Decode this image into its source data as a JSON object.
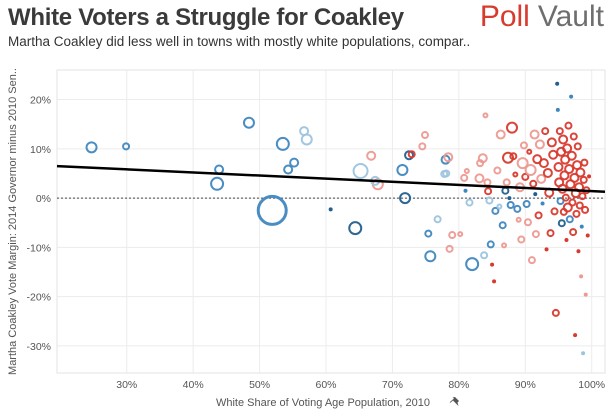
{
  "header": {
    "title": "White Voters a Struggle for Coakley",
    "subtitle": "Martha Coakley did less well in towns with mostly white populations, compar..",
    "logo_poll": "Poll",
    "logo_vault": "Vault"
  },
  "colors": {
    "red": "#d83a2e",
    "light_red": "#ec9a92",
    "blue": "#3f87bf",
    "dark_blue": "#235f8e",
    "light_blue": "#9dc4de",
    "trend": "#000000",
    "brand_red": "#d83a2e"
  },
  "icons": {
    "pin": "pin-icon"
  },
  "chart_data": {
    "type": "scatter",
    "title": "White Voters a Struggle for Coakley",
    "subtitle": "Martha Coakley did less well in towns with mostly white populations, compar..",
    "xlabel": "White Share of Voting Age Population, 2010",
    "ylabel": "Martha Coakley Vote Margin: 2014 Governor minus 2010 Sen..",
    "xlim": [
      19.5,
      102
    ],
    "ylim": [
      -35.5,
      26
    ],
    "xticks": [
      30,
      40,
      50,
      60,
      70,
      80,
      90,
      100
    ],
    "yticks": [
      20,
      10,
      0,
      -10,
      -20,
      -30
    ],
    "xtick_labels": [
      "30%",
      "40%",
      "50%",
      "60%",
      "70%",
      "80%",
      "90%",
      "100%"
    ],
    "ytick_labels": [
      "20%",
      "10%",
      "0%",
      "-10%",
      "-20%",
      "-30%"
    ],
    "zero_reference_line": true,
    "grid": true,
    "trend_line": {
      "x": [
        19.5,
        102
      ],
      "y": [
        6.5,
        1.3
      ]
    },
    "points": [
      {
        "x": 24.7,
        "y": 10.3,
        "size": 5,
        "color": "blue",
        "filled": false
      },
      {
        "x": 29.9,
        "y": 10.5,
        "size": 3,
        "color": "blue",
        "filled": false
      },
      {
        "x": 43.6,
        "y": 2.9,
        "size": 6,
        "color": "blue",
        "filled": false
      },
      {
        "x": 43.9,
        "y": 5.8,
        "size": 4,
        "color": "blue",
        "filled": false
      },
      {
        "x": 48.4,
        "y": 15.3,
        "size": 5,
        "color": "blue",
        "filled": false
      },
      {
        "x": 53.5,
        "y": 11.0,
        "size": 6,
        "color": "blue",
        "filled": false
      },
      {
        "x": 54.3,
        "y": 5.8,
        "size": 4,
        "color": "blue",
        "filled": false
      },
      {
        "x": 55.2,
        "y": 7.2,
        "size": 4,
        "color": "blue",
        "filled": false
      },
      {
        "x": 56.7,
        "y": 13.6,
        "size": 4,
        "color": "light_blue",
        "filled": false
      },
      {
        "x": 57.1,
        "y": 11.9,
        "size": 5,
        "color": "light_blue",
        "filled": false
      },
      {
        "x": 51.9,
        "y": -2.5,
        "size": 14,
        "color": "blue",
        "filled": false
      },
      {
        "x": 60.7,
        "y": -2.3,
        "size": 2,
        "color": "dark_blue",
        "filled": true
      },
      {
        "x": 64.4,
        "y": -6.1,
        "size": 6,
        "color": "dark_blue",
        "filled": false
      },
      {
        "x": 65.2,
        "y": 5.5,
        "size": 7,
        "color": "light_blue",
        "filled": false
      },
      {
        "x": 66.8,
        "y": 8.6,
        "size": 4,
        "color": "light_red",
        "filled": false
      },
      {
        "x": 67.8,
        "y": 2.8,
        "size": 5,
        "color": "light_red",
        "filled": false
      },
      {
        "x": 67.4,
        "y": 3.5,
        "size": 4,
        "color": "light_blue",
        "filled": false
      },
      {
        "x": 71.5,
        "y": 5.7,
        "size": 5,
        "color": "blue",
        "filled": false
      },
      {
        "x": 71.9,
        "y": 0.0,
        "size": 5,
        "color": "dark_blue",
        "filled": false
      },
      {
        "x": 72.5,
        "y": 8.7,
        "size": 4,
        "color": "dark_blue",
        "filled": false
      },
      {
        "x": 72.9,
        "y": 8.9,
        "size": 3,
        "color": "red",
        "filled": false
      },
      {
        "x": 74.5,
        "y": 10.5,
        "size": 3,
        "color": "light_red",
        "filled": false
      },
      {
        "x": 74.9,
        "y": 12.8,
        "size": 3,
        "color": "light_red",
        "filled": false
      },
      {
        "x": 75.4,
        "y": -7.2,
        "size": 3,
        "color": "blue",
        "filled": false
      },
      {
        "x": 75.7,
        "y": -11.8,
        "size": 5,
        "color": "blue",
        "filled": false
      },
      {
        "x": 76.8,
        "y": -4.3,
        "size": 3,
        "color": "light_blue",
        "filled": false
      },
      {
        "x": 77.8,
        "y": 4.9,
        "size": 3,
        "color": "light_blue",
        "filled": false
      },
      {
        "x": 78.0,
        "y": 7.8,
        "size": 4,
        "color": "blue",
        "filled": false
      },
      {
        "x": 78.1,
        "y": 5.0,
        "size": 3,
        "color": "light_blue",
        "filled": false
      },
      {
        "x": 78.4,
        "y": 8.3,
        "size": 4,
        "color": "light_red",
        "filled": false
      },
      {
        "x": 78.6,
        "y": -10.3,
        "size": 3,
        "color": "light_red",
        "filled": false
      },
      {
        "x": 79.0,
        "y": -7.5,
        "size": 3,
        "color": "light_red",
        "filled": false
      },
      {
        "x": 80.2,
        "y": -7.3,
        "size": 2,
        "color": "light_red",
        "filled": false
      },
      {
        "x": 80.8,
        "y": 4.1,
        "size": 3,
        "color": "light_red",
        "filled": false
      },
      {
        "x": 81.2,
        "y": 5.5,
        "size": 2,
        "color": "light_red",
        "filled": false
      },
      {
        "x": 81.6,
        "y": -0.9,
        "size": 3,
        "color": "light_blue",
        "filled": false
      },
      {
        "x": 81.0,
        "y": 1.5,
        "size": 2,
        "color": "blue",
        "filled": true
      },
      {
        "x": 82.0,
        "y": -13.4,
        "size": 6,
        "color": "blue",
        "filled": false
      },
      {
        "x": 83.8,
        "y": -11.6,
        "size": 3,
        "color": "light_blue",
        "filled": false
      },
      {
        "x": 83.1,
        "y": 4.0,
        "size": 4,
        "color": "light_red",
        "filled": false
      },
      {
        "x": 83.2,
        "y": 7.1,
        "size": 3,
        "color": "light_red",
        "filled": false
      },
      {
        "x": 83.6,
        "y": 8.1,
        "size": 4,
        "color": "light_red",
        "filled": false
      },
      {
        "x": 84.0,
        "y": 16.8,
        "size": 2,
        "color": "light_red",
        "filled": false
      },
      {
        "x": 84.3,
        "y": 3.2,
        "size": 3,
        "color": "light_red",
        "filled": false
      },
      {
        "x": 84.4,
        "y": 1.4,
        "size": 3,
        "color": "red",
        "filled": false
      },
      {
        "x": 84.6,
        "y": -0.5,
        "size": 3,
        "color": "light_blue",
        "filled": false
      },
      {
        "x": 84.8,
        "y": -9.4,
        "size": 3,
        "color": "blue",
        "filled": false
      },
      {
        "x": 85.0,
        "y": -13.5,
        "size": 2,
        "color": "red",
        "filled": true
      },
      {
        "x": 85.3,
        "y": -16.9,
        "size": 2,
        "color": "red",
        "filled": true
      },
      {
        "x": 85.5,
        "y": -2.6,
        "size": 3,
        "color": "blue",
        "filled": false
      },
      {
        "x": 85.8,
        "y": 5.6,
        "size": 3,
        "color": "light_red",
        "filled": false
      },
      {
        "x": 86.1,
        "y": -1.7,
        "size": 2,
        "color": "light_blue",
        "filled": false
      },
      {
        "x": 86.3,
        "y": 12.9,
        "size": 4,
        "color": "light_red",
        "filled": false
      },
      {
        "x": 86.6,
        "y": -5.5,
        "size": 3,
        "color": "blue",
        "filled": false
      },
      {
        "x": 86.8,
        "y": -9.6,
        "size": 2,
        "color": "light_red",
        "filled": false
      },
      {
        "x": 87.0,
        "y": 1.5,
        "size": 3,
        "color": "dark_blue",
        "filled": false
      },
      {
        "x": 87.2,
        "y": 3.2,
        "size": 3,
        "color": "light_red",
        "filled": false
      },
      {
        "x": 87.4,
        "y": 8.2,
        "size": 5,
        "color": "red",
        "filled": false
      },
      {
        "x": 87.6,
        "y": 0.0,
        "size": 2,
        "color": "dark_blue",
        "filled": true
      },
      {
        "x": 87.8,
        "y": -1.4,
        "size": 3,
        "color": "blue",
        "filled": false
      },
      {
        "x": 88.0,
        "y": 14.3,
        "size": 5,
        "color": "red",
        "filled": false
      },
      {
        "x": 88.2,
        "y": 8.5,
        "size": 3,
        "color": "red",
        "filled": false
      },
      {
        "x": 88.5,
        "y": 4.8,
        "size": 2,
        "color": "red",
        "filled": false
      },
      {
        "x": 88.8,
        "y": -2.2,
        "size": 3,
        "color": "blue",
        "filled": false
      },
      {
        "x": 89.0,
        "y": -4.4,
        "size": 2,
        "color": "light_red",
        "filled": false
      },
      {
        "x": 89.2,
        "y": 2.2,
        "size": 4,
        "color": "light_red",
        "filled": false
      },
      {
        "x": 89.4,
        "y": -8.4,
        "size": 3,
        "color": "light_red",
        "filled": false
      },
      {
        "x": 89.6,
        "y": 7.1,
        "size": 5,
        "color": "light_red",
        "filled": false
      },
      {
        "x": 89.8,
        "y": 10.7,
        "size": 3,
        "color": "light_red",
        "filled": false
      },
      {
        "x": 90.0,
        "y": 4.3,
        "size": 3,
        "color": "red",
        "filled": false
      },
      {
        "x": 90.2,
        "y": -1.2,
        "size": 3,
        "color": "blue",
        "filled": false
      },
      {
        "x": 90.4,
        "y": -4.9,
        "size": 3,
        "color": "light_red",
        "filled": false
      },
      {
        "x": 90.6,
        "y": 9.4,
        "size": 2,
        "color": "red",
        "filled": false
      },
      {
        "x": 90.8,
        "y": 5.7,
        "size": 5,
        "color": "light_red",
        "filled": false
      },
      {
        "x": 91.0,
        "y": -12.6,
        "size": 3,
        "color": "light_red",
        "filled": false
      },
      {
        "x": 91.2,
        "y": 2.9,
        "size": 3,
        "color": "red",
        "filled": false
      },
      {
        "x": 91.4,
        "y": 12.9,
        "size": 4,
        "color": "light_red",
        "filled": false
      },
      {
        "x": 91.5,
        "y": 0.8,
        "size": 2,
        "color": "dark_blue",
        "filled": true
      },
      {
        "x": 91.6,
        "y": -7.3,
        "size": 3,
        "color": "light_red",
        "filled": false
      },
      {
        "x": 91.8,
        "y": 7.9,
        "size": 4,
        "color": "red",
        "filled": false
      },
      {
        "x": 92.0,
        "y": -3.5,
        "size": 3,
        "color": "red",
        "filled": false
      },
      {
        "x": 92.2,
        "y": 10.9,
        "size": 4,
        "color": "light_red",
        "filled": false
      },
      {
        "x": 92.4,
        "y": 3.9,
        "size": 4,
        "color": "light_red",
        "filled": false
      },
      {
        "x": 92.6,
        "y": -1.1,
        "size": 2,
        "color": "blue",
        "filled": true
      },
      {
        "x": 92.8,
        "y": 7.1,
        "size": 4,
        "color": "red",
        "filled": false
      },
      {
        "x": 93.0,
        "y": 13.6,
        "size": 3,
        "color": "red",
        "filled": false
      },
      {
        "x": 93.2,
        "y": -10.4,
        "size": 2,
        "color": "red",
        "filled": true
      },
      {
        "x": 93.4,
        "y": 5.1,
        "size": 4,
        "color": "red",
        "filled": false
      },
      {
        "x": 93.6,
        "y": 1.1,
        "size": 4,
        "color": "red",
        "filled": false
      },
      {
        "x": 93.8,
        "y": -7.1,
        "size": 3,
        "color": "red",
        "filled": false
      },
      {
        "x": 94.0,
        "y": 11.3,
        "size": 4,
        "color": "red",
        "filled": false
      },
      {
        "x": 94.2,
        "y": 8.8,
        "size": 4,
        "color": "red",
        "filled": false
      },
      {
        "x": 94.4,
        "y": -2.7,
        "size": 3,
        "color": "red",
        "filled": false
      },
      {
        "x": 94.6,
        "y": -23.3,
        "size": 3,
        "color": "red",
        "filled": false
      },
      {
        "x": 94.8,
        "y": 23.2,
        "size": 2,
        "color": "dark_blue",
        "filled": true
      },
      {
        "x": 94.9,
        "y": 17.9,
        "size": 2,
        "color": "blue",
        "filled": true
      },
      {
        "x": 95.0,
        "y": 6.3,
        "size": 4,
        "color": "red",
        "filled": false
      },
      {
        "x": 95.1,
        "y": 3.2,
        "size": 4,
        "color": "red",
        "filled": false
      },
      {
        "x": 95.2,
        "y": 13.6,
        "size": 3,
        "color": "red",
        "filled": false
      },
      {
        "x": 95.3,
        "y": -0.6,
        "size": 3,
        "color": "blue",
        "filled": false
      },
      {
        "x": 95.4,
        "y": 9.4,
        "size": 4,
        "color": "red",
        "filled": false
      },
      {
        "x": 95.5,
        "y": -5.1,
        "size": 3,
        "color": "dark_blue",
        "filled": false
      },
      {
        "x": 95.6,
        "y": 1.9,
        "size": 4,
        "color": "red",
        "filled": false
      },
      {
        "x": 95.7,
        "y": 11.9,
        "size": 4,
        "color": "red",
        "filled": false
      },
      {
        "x": 95.8,
        "y": -2.8,
        "size": 3,
        "color": "red",
        "filled": false
      },
      {
        "x": 95.9,
        "y": 4.6,
        "size": 4,
        "color": "red",
        "filled": false
      },
      {
        "x": 96.0,
        "y": 7.8,
        "size": 4,
        "color": "red",
        "filled": false
      },
      {
        "x": 96.1,
        "y": 0.1,
        "size": 3,
        "color": "red",
        "filled": false
      },
      {
        "x": 96.2,
        "y": -8.5,
        "size": 2,
        "color": "red",
        "filled": true
      },
      {
        "x": 96.3,
        "y": 10.1,
        "size": 4,
        "color": "red",
        "filled": false
      },
      {
        "x": 96.4,
        "y": -1.9,
        "size": 4,
        "color": "red",
        "filled": false
      },
      {
        "x": 96.5,
        "y": 14.7,
        "size": 3,
        "color": "red",
        "filled": false
      },
      {
        "x": 96.6,
        "y": 5.9,
        "size": 4,
        "color": "red",
        "filled": false
      },
      {
        "x": 96.7,
        "y": -4.3,
        "size": 3,
        "color": "blue",
        "filled": false
      },
      {
        "x": 96.8,
        "y": 2.8,
        "size": 4,
        "color": "red",
        "filled": false
      },
      {
        "x": 96.9,
        "y": 20.6,
        "size": 2,
        "color": "blue",
        "filled": true
      },
      {
        "x": 97.0,
        "y": 8.6,
        "size": 4,
        "color": "red",
        "filled": false
      },
      {
        "x": 97.1,
        "y": -0.9,
        "size": 3,
        "color": "red",
        "filled": false
      },
      {
        "x": 97.2,
        "y": -6.9,
        "size": 3,
        "color": "red",
        "filled": false
      },
      {
        "x": 97.3,
        "y": 12.5,
        "size": 3,
        "color": "red",
        "filled": false
      },
      {
        "x": 97.4,
        "y": 4.1,
        "size": 4,
        "color": "red",
        "filled": false
      },
      {
        "x": 97.5,
        "y": -27.8,
        "size": 2,
        "color": "red",
        "filled": true
      },
      {
        "x": 97.6,
        "y": 1.0,
        "size": 4,
        "color": "red",
        "filled": false
      },
      {
        "x": 97.7,
        "y": -3.2,
        "size": 3,
        "color": "red",
        "filled": false
      },
      {
        "x": 97.8,
        "y": 6.7,
        "size": 4,
        "color": "red",
        "filled": false
      },
      {
        "x": 97.9,
        "y": 10.5,
        "size": 3,
        "color": "red",
        "filled": false
      },
      {
        "x": 98.0,
        "y": -10.8,
        "size": 2,
        "color": "red",
        "filled": true
      },
      {
        "x": 98.1,
        "y": 2.2,
        "size": 4,
        "color": "red",
        "filled": false
      },
      {
        "x": 98.2,
        "y": -1.5,
        "size": 3,
        "color": "red",
        "filled": false
      },
      {
        "x": 98.3,
        "y": 5.2,
        "size": 4,
        "color": "red",
        "filled": false
      },
      {
        "x": 98.4,
        "y": -15.9,
        "size": 2,
        "color": "light_red",
        "filled": true
      },
      {
        "x": 98.5,
        "y": -5.8,
        "size": 2,
        "color": "blue",
        "filled": true
      },
      {
        "x": 98.6,
        "y": 0.4,
        "size": 3,
        "color": "red",
        "filled": false
      },
      {
        "x": 98.7,
        "y": -31.5,
        "size": 2,
        "color": "light_blue",
        "filled": true
      },
      {
        "x": 98.8,
        "y": 3.7,
        "size": 3,
        "color": "red",
        "filled": false
      },
      {
        "x": 98.9,
        "y": 7.2,
        "size": 3,
        "color": "red",
        "filled": false
      },
      {
        "x": 99.0,
        "y": -2.4,
        "size": 3,
        "color": "red",
        "filled": false
      },
      {
        "x": 99.1,
        "y": -19.6,
        "size": 2,
        "color": "light_red",
        "filled": true
      },
      {
        "x": 99.2,
        "y": 1.6,
        "size": 3,
        "color": "red",
        "filled": false
      },
      {
        "x": 99.4,
        "y": -7.6,
        "size": 2,
        "color": "red",
        "filled": true
      },
      {
        "x": 99.6,
        "y": 4.4,
        "size": 2,
        "color": "red",
        "filled": true
      }
    ]
  }
}
